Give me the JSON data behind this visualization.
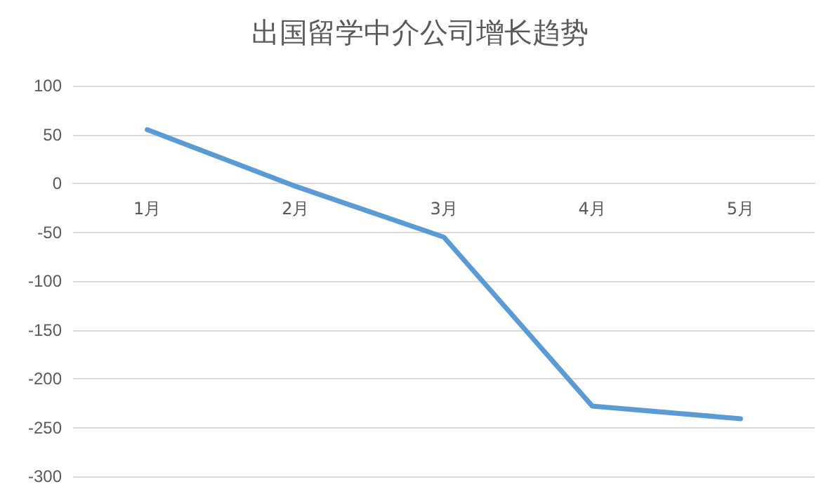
{
  "chart_data": {
    "type": "line",
    "title": "出国留学中介公司增长趋势",
    "categories": [
      "1月",
      "2月",
      "3月",
      "4月",
      "5月"
    ],
    "series": [
      {
        "color": "#5b9bd5",
        "values": [
          55,
          -3,
          -55,
          -228,
          -241
        ]
      }
    ],
    "ylim": [
      -300,
      100
    ],
    "yticks": [
      -300,
      -250,
      -200,
      -150,
      -100,
      -50,
      0,
      50,
      100
    ],
    "grid": "y",
    "marker": "none",
    "line_style": "solid"
  }
}
